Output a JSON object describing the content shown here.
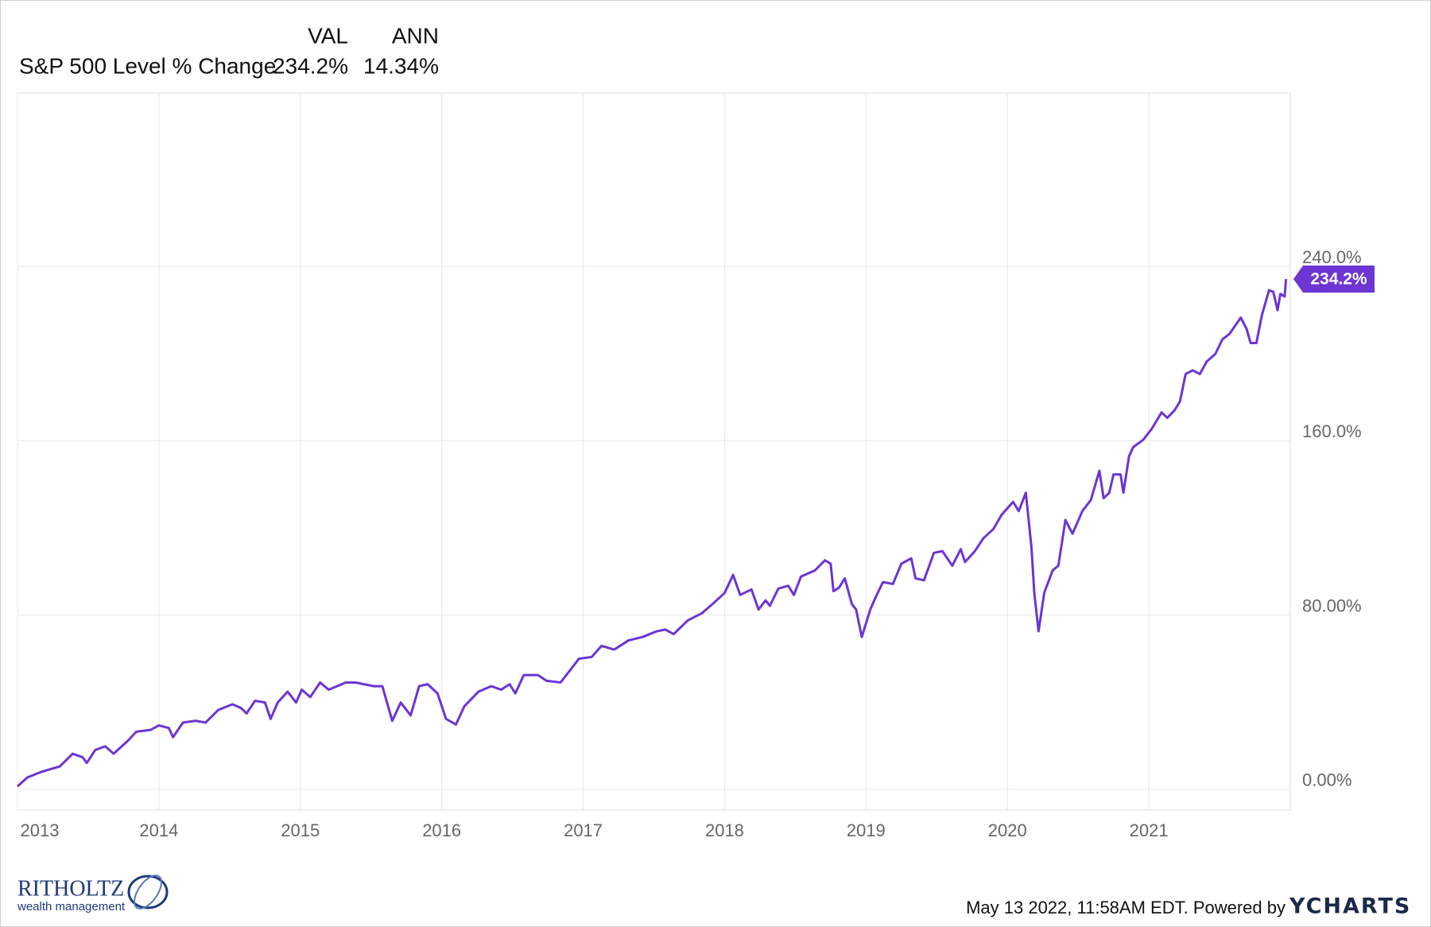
{
  "chart_data": {
    "type": "line",
    "header": {
      "columns": [
        "VAL",
        "ANN"
      ],
      "val": "234.2%",
      "ann": "14.34%"
    },
    "series": [
      {
        "name": "S&P 500 Level % Change",
        "color": "#6c35d4",
        "end_label": "234.2%",
        "x": [
          2013.0,
          2013.07,
          2013.17,
          2013.3,
          2013.39,
          2013.46,
          2013.49,
          2013.55,
          2013.62,
          2013.68,
          2013.78,
          2013.84,
          2013.94,
          2014.0,
          2014.07,
          2014.1,
          2014.17,
          2014.26,
          2014.33,
          2014.42,
          2014.52,
          2014.58,
          2014.62,
          2014.68,
          2014.75,
          2014.79,
          2014.84,
          2014.91,
          2014.97,
          2015.01,
          2015.07,
          2015.14,
          2015.2,
          2015.26,
          2015.32,
          2015.39,
          2015.45,
          2015.52,
          2015.58,
          2015.65,
          2015.71,
          2015.78,
          2015.84,
          2015.9,
          2015.97,
          2016.03,
          2016.1,
          2016.16,
          2016.26,
          2016.35,
          2016.42,
          2016.48,
          2016.52,
          2016.58,
          2016.68,
          2016.74,
          2016.84,
          2016.9,
          2016.97,
          2017.06,
          2017.13,
          2017.22,
          2017.32,
          2017.42,
          2017.52,
          2017.58,
          2017.64,
          2017.74,
          2017.84,
          2017.93,
          2018.0,
          2018.06,
          2018.11,
          2018.19,
          2018.24,
          2018.29,
          2018.32,
          2018.38,
          2018.45,
          2018.49,
          2018.54,
          2018.64,
          2018.71,
          2018.75,
          2018.77,
          2018.81,
          2018.85,
          2018.9,
          2018.93,
          2018.97,
          2019.03,
          2019.07,
          2019.12,
          2019.19,
          2019.25,
          2019.32,
          2019.35,
          2019.41,
          2019.48,
          2019.54,
          2019.61,
          2019.67,
          2019.7,
          2019.77,
          2019.83,
          2019.9,
          2019.96,
          2020.04,
          2020.08,
          2020.13,
          2020.17,
          2020.19,
          2020.22,
          2020.26,
          2020.32,
          2020.36,
          2020.41,
          2020.46,
          2020.53,
          2020.59,
          2020.65,
          2020.68,
          2020.72,
          2020.75,
          2020.8,
          2020.82,
          2020.86,
          2020.89,
          2020.96,
          2021.02,
          2021.09,
          2021.13,
          2021.18,
          2021.22,
          2021.26,
          2021.31,
          2021.36,
          2021.41,
          2021.47,
          2021.52,
          2021.57,
          2021.65,
          2021.69,
          2021.72,
          2021.76,
          2021.8,
          2021.85,
          2021.88,
          2021.91,
          2021.93,
          2021.96,
          2021.97
        ],
        "values": [
          1.3,
          5.4,
          8.0,
          10.5,
          16.3,
          14.7,
          12.1,
          18.0,
          19.7,
          16.3,
          22.2,
          26.4,
          27.2,
          29.3,
          28.1,
          23.9,
          30.6,
          31.4,
          30.6,
          36.4,
          39.0,
          37.3,
          34.8,
          40.6,
          39.8,
          32.3,
          39.8,
          44.8,
          39.8,
          45.7,
          42.3,
          49.0,
          45.7,
          47.3,
          49.0,
          49.0,
          48.2,
          47.3,
          47.3,
          31.4,
          39.8,
          33.9,
          47.3,
          48.2,
          44.0,
          32.3,
          29.7,
          38.1,
          44.8,
          47.3,
          45.7,
          48.2,
          44.0,
          52.4,
          52.4,
          49.8,
          49.0,
          54.0,
          59.9,
          60.7,
          65.8,
          64.1,
          68.3,
          69.9,
          72.5,
          73.3,
          71.2,
          77.5,
          80.8,
          85.9,
          90.1,
          98.4,
          89.2,
          91.7,
          82.5,
          86.7,
          84.2,
          92.1,
          93.4,
          89.2,
          97.6,
          100.5,
          105.1,
          103.5,
          90.9,
          92.6,
          96.8,
          85.0,
          82.5,
          69.9,
          82.5,
          88.4,
          95.1,
          94.2,
          103.5,
          106.0,
          96.8,
          95.9,
          108.5,
          109.3,
          102.6,
          110.2,
          104.3,
          109.3,
          115.2,
          119.4,
          126.1,
          131.9,
          127.7,
          136.1,
          111.0,
          90.1,
          72.5,
          90.1,
          100.5,
          102.6,
          123.6,
          117.3,
          127.7,
          132.8,
          146.2,
          133.6,
          136.1,
          144.5,
          144.5,
          136.1,
          152.9,
          157.1,
          160.4,
          165.4,
          173.0,
          170.5,
          173.8,
          178.0,
          190.6,
          192.3,
          190.6,
          196.4,
          199.8,
          206.5,
          209.0,
          216.5,
          211.5,
          204.8,
          204.8,
          217.8,
          229.1,
          228.3,
          219.9,
          227.4,
          226.2,
          234.2
        ]
      }
    ],
    "xlim": [
      2013,
      2022
    ],
    "xticks": [
      2013,
      2014,
      2015,
      2016,
      2017,
      2018,
      2019,
      2020,
      2021
    ],
    "ylim": [
      -9.6,
      319.6
    ],
    "yticks": [
      {
        "value": 0,
        "label": "0.00%"
      },
      {
        "value": 80,
        "label": "80.00%"
      },
      {
        "value": 160,
        "label": "160.0%"
      },
      {
        "value": 240,
        "label": "240.0%"
      }
    ],
    "grid": true
  },
  "footer": {
    "timestamp": "May 13 2022, 11:58AM EDT. Powered by",
    "brand": "YCHARTS",
    "logo": {
      "name": "RITHOLTZ",
      "tagline": "wealth management"
    }
  }
}
